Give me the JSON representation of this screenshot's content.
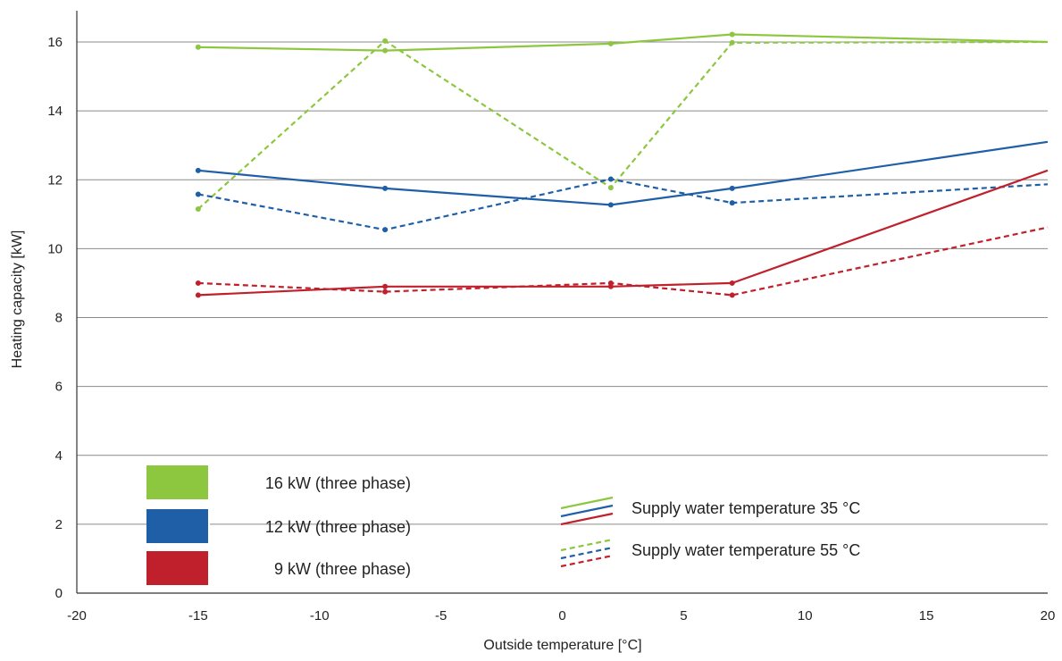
{
  "chart_data": {
    "type": "line",
    "xlabel": "Outside temperature [°C]",
    "ylabel": "Heating capacity [kW]",
    "xlim": [
      -20,
      20
    ],
    "ylim": [
      0,
      16
    ],
    "xticks": [
      -20,
      -15,
      -10,
      -5,
      0,
      5,
      10,
      15,
      20
    ],
    "yticks": [
      0,
      2,
      4,
      6,
      8,
      10,
      12,
      14,
      16
    ],
    "grid": "horizontal",
    "colors": {
      "green": "#8dc63f",
      "blue": "#1f5fa8",
      "red": "#c0202c"
    },
    "series": [
      {
        "model": "16 kW (three phase)",
        "supply": "35",
        "style": "solid",
        "color": "#8dc63f",
        "x": [
          -15,
          -7.3,
          2,
          7,
          20
        ],
        "y": [
          15.85,
          15.75,
          15.95,
          16.22,
          16.0
        ]
      },
      {
        "model": "16 kW (three phase)",
        "supply": "55",
        "style": "dashed",
        "color": "#8dc63f",
        "x": [
          -15,
          -7.3,
          2,
          7,
          20
        ],
        "y": [
          11.15,
          16.03,
          11.77,
          15.98,
          16.0
        ]
      },
      {
        "model": "12 kW (three phase)",
        "supply": "35",
        "style": "solid",
        "color": "#1f5fa8",
        "x": [
          -15,
          -7.3,
          2,
          7,
          20
        ],
        "y": [
          12.27,
          11.75,
          11.27,
          11.75,
          13.1
        ]
      },
      {
        "model": "12 kW (three phase)",
        "supply": "55",
        "style": "dashed",
        "color": "#1f5fa8",
        "x": [
          -15,
          -7.3,
          2,
          7,
          20
        ],
        "y": [
          11.58,
          10.55,
          12.02,
          11.33,
          11.87
        ]
      },
      {
        "model": "9 kW (three phase)",
        "supply": "35",
        "style": "solid",
        "color": "#c0202c",
        "x": [
          -15,
          -7.3,
          2,
          7,
          20
        ],
        "y": [
          8.65,
          8.9,
          8.9,
          9.0,
          12.27
        ]
      },
      {
        "model": "9 kW (three phase)",
        "supply": "55",
        "style": "dashed",
        "color": "#c0202c",
        "x": [
          -15,
          -7.3,
          2,
          7,
          20
        ],
        "y": [
          9.0,
          8.75,
          9.0,
          8.65,
          10.62
        ]
      }
    ],
    "legend_models": [
      {
        "label": "16 kW (three phase)",
        "color": "#8dc63f"
      },
      {
        "label": "12 kW (three phase)",
        "color": "#1f5fa8"
      },
      {
        "label": "9 kW (three phase)",
        "color": "#c0202c"
      }
    ],
    "legend_styles": [
      {
        "label": "Supply water temperature 35 °C",
        "style": "solid"
      },
      {
        "label": "Supply water temperature 55 °C",
        "style": "dashed"
      }
    ]
  }
}
